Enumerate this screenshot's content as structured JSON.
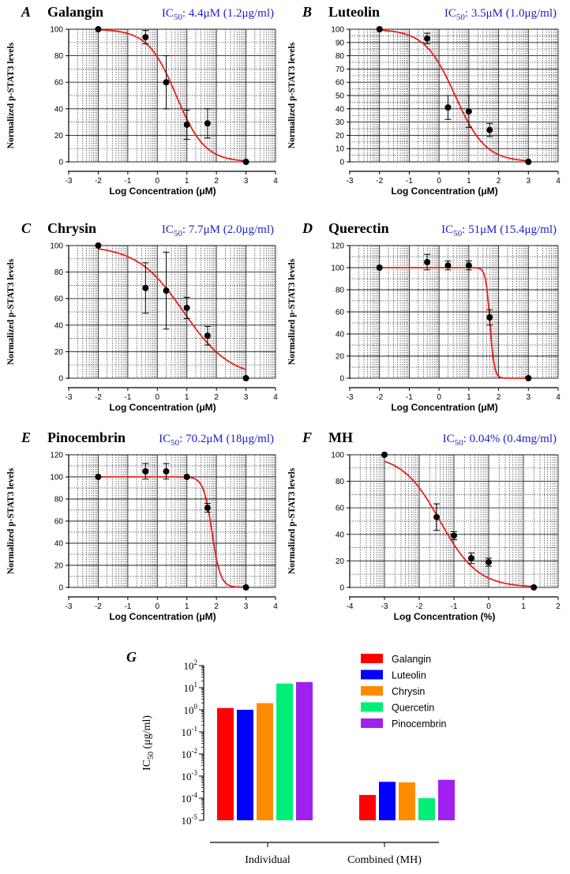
{
  "chart_data": [
    {
      "panel": "A",
      "title": "Galangin",
      "ic50_prefix": "IC",
      "ic50_sub": "50",
      "ic50_value": ": 4.4μM (1.2μg/ml)",
      "type": "scatter",
      "xlabel": "Log Concentration (μM)",
      "ylabel": "Normalized p-STAT3 levels",
      "xlim": [
        -3,
        4
      ],
      "ylim": [
        0,
        100
      ],
      "xticks": [
        "-3",
        "-2",
        "-1",
        "0",
        "1",
        "2",
        "3",
        "4"
      ],
      "yticks": [
        "0",
        "20",
        "40",
        "60",
        "80",
        "100"
      ],
      "points": [
        {
          "x": -2,
          "y": 100,
          "err": 0
        },
        {
          "x": -0.4,
          "y": 94,
          "err": 5
        },
        {
          "x": 0.3,
          "y": 60,
          "err": 20
        },
        {
          "x": 1.0,
          "y": 28,
          "err": 11
        },
        {
          "x": 1.7,
          "y": 29,
          "err": 11
        },
        {
          "x": 3.0,
          "y": 0,
          "err": 0
        }
      ],
      "fit": {
        "top": 100,
        "bottom": 0,
        "logIC50": 0.64,
        "hill": 0.9,
        "xfrom": -2,
        "xto": 3
      }
    },
    {
      "panel": "B",
      "title": "Luteolin",
      "ic50_prefix": "IC",
      "ic50_sub": "50",
      "ic50_value": ": 3.5μM (1.0μg/ml)",
      "type": "scatter",
      "xlabel": "Log Concentration (μM)",
      "ylabel": "Normalized p-STAT3 levels",
      "xlim": [
        -3,
        4
      ],
      "ylim": [
        0,
        100
      ],
      "xticks": [
        "-3",
        "-2",
        "-1",
        "0",
        "1",
        "2",
        "3",
        "4"
      ],
      "yticks": [
        "0",
        "10",
        "20",
        "30",
        "40",
        "50",
        "60",
        "70",
        "80",
        "90",
        "100"
      ],
      "points": [
        {
          "x": -2,
          "y": 100,
          "err": 0
        },
        {
          "x": -0.4,
          "y": 93,
          "err": 4
        },
        {
          "x": 0.3,
          "y": 41,
          "err": 9
        },
        {
          "x": 1.0,
          "y": 38,
          "err": 12
        },
        {
          "x": 1.7,
          "y": 24,
          "err": 5
        },
        {
          "x": 3.0,
          "y": 0,
          "err": 0
        }
      ],
      "fit": {
        "top": 100,
        "bottom": 0,
        "logIC50": 0.54,
        "hill": 0.85,
        "xfrom": -2,
        "xto": 3
      }
    },
    {
      "panel": "C",
      "title": "Chrysin",
      "ic50_prefix": "IC",
      "ic50_sub": "50",
      "ic50_value": ": 7.7μM (2.0μg/ml)",
      "type": "scatter",
      "xlabel": "Log Concentration (μM)",
      "ylabel": "Normalized p-STAT3 levels",
      "xlim": [
        -3,
        4
      ],
      "ylim": [
        0,
        100
      ],
      "xticks": [
        "-3",
        "-2",
        "-1",
        "0",
        "1",
        "2",
        "3",
        "4"
      ],
      "yticks": [
        "0",
        "20",
        "40",
        "60",
        "80",
        "100"
      ],
      "points": [
        {
          "x": -2,
          "y": 100,
          "err": 0
        },
        {
          "x": -0.4,
          "y": 68,
          "err": 19
        },
        {
          "x": 0.3,
          "y": 66,
          "err": 29
        },
        {
          "x": 1.0,
          "y": 53,
          "err": 8
        },
        {
          "x": 1.7,
          "y": 32,
          "err": 7
        },
        {
          "x": 3.0,
          "y": 0,
          "err": 0
        }
      ],
      "fit": {
        "top": 100,
        "bottom": 0,
        "logIC50": 0.89,
        "hill": 0.55,
        "xfrom": -2,
        "xto": 3
      }
    },
    {
      "panel": "D",
      "title": "Querectin",
      "ic50_prefix": "IC",
      "ic50_sub": "50",
      "ic50_value": ": 51μM (15.4μg/ml)",
      "type": "scatter",
      "xlabel": "Log Concentration (μM)",
      "ylabel": "Normalized p-STAT3 levels",
      "xlim": [
        -3,
        4
      ],
      "ylim": [
        0,
        120
      ],
      "xticks": [
        "-3",
        "-2",
        "-1",
        "0",
        "1",
        "2",
        "3",
        "4"
      ],
      "yticks": [
        "0",
        "20",
        "40",
        "60",
        "80",
        "100",
        "120"
      ],
      "points": [
        {
          "x": -2,
          "y": 100,
          "err": 0
        },
        {
          "x": -0.4,
          "y": 105,
          "err": 7
        },
        {
          "x": 0.3,
          "y": 102,
          "err": 4
        },
        {
          "x": 1.0,
          "y": 102,
          "err": 4
        },
        {
          "x": 1.7,
          "y": 55,
          "err": 7
        },
        {
          "x": 3.0,
          "y": 0,
          "err": 0
        }
      ],
      "fit": {
        "top": 100,
        "bottom": 0,
        "logIC50": 1.71,
        "hill": 6,
        "xfrom": -2,
        "xto": 3
      }
    },
    {
      "panel": "E",
      "title": "Pinocembrin",
      "ic50_prefix": "IC",
      "ic50_sub": "50",
      "ic50_value": ": 70.2μM (18μg/ml)",
      "type": "scatter",
      "xlabel": "Log Concentration (μM)",
      "ylabel": "Normalized p-STAT3 levels",
      "xlim": [
        -3,
        4
      ],
      "ylim": [
        0,
        120
      ],
      "xticks": [
        "-3",
        "-2",
        "-1",
        "0",
        "1",
        "2",
        "3",
        "4"
      ],
      "yticks": [
        "0",
        "20",
        "40",
        "60",
        "80",
        "100",
        "120"
      ],
      "points": [
        {
          "x": -2,
          "y": 100,
          "err": 0
        },
        {
          "x": -0.4,
          "y": 105,
          "err": 7
        },
        {
          "x": 0.3,
          "y": 105,
          "err": 7
        },
        {
          "x": 1.0,
          "y": 100,
          "err": 0
        },
        {
          "x": 1.7,
          "y": 72,
          "err": 4
        },
        {
          "x": 3.0,
          "y": 0,
          "err": 0
        }
      ],
      "fit": {
        "top": 100,
        "bottom": 0,
        "logIC50": 1.85,
        "hill": 3,
        "xfrom": -2,
        "xto": 3
      }
    },
    {
      "panel": "F",
      "title": "MH",
      "ic50_prefix": "IC",
      "ic50_sub": "50",
      "ic50_value": ": 0.04% (0.4mg/ml)",
      "type": "scatter",
      "xlabel": "Log Concentration (%)",
      "ylabel": "Normalized p-STAT3 levels",
      "xlim": [
        -4,
        2
      ],
      "ylim": [
        0,
        100
      ],
      "xticks": [
        "-4",
        "-3",
        "-2",
        "-1",
        "0",
        "1",
        "2"
      ],
      "yticks": [
        "0",
        "20",
        "40",
        "60",
        "80",
        "100"
      ],
      "points": [
        {
          "x": -3,
          "y": 100,
          "err": 0
        },
        {
          "x": -1.5,
          "y": 53,
          "err": 10
        },
        {
          "x": -1.0,
          "y": 39,
          "err": 3
        },
        {
          "x": -0.5,
          "y": 22,
          "err": 4
        },
        {
          "x": 0.0,
          "y": 19,
          "err": 3
        },
        {
          "x": 1.3,
          "y": 0,
          "err": 0
        }
      ],
      "fit": {
        "top": 100,
        "bottom": 0,
        "logIC50": -1.4,
        "hill": 0.8,
        "xfrom": -3,
        "xto": 1.3
      }
    },
    {
      "panel": "G",
      "type": "bar",
      "log_scale": true,
      "ylabel_prefix": "IC",
      "ylabel_sub": "50",
      "ylabel_suffix": " (μg/ml)",
      "ylim_exp": [
        -5,
        2
      ],
      "ytick_exps": [
        "-5",
        "-4",
        "-3",
        "-2",
        "-1",
        "0",
        "1",
        "2"
      ],
      "ytick_base": "10",
      "categories": [
        "Individual",
        "Combined (MH)"
      ],
      "series": [
        {
          "name": "Galangin",
          "color": "#ff0000",
          "values": [
            1.2,
            0.00014
          ]
        },
        {
          "name": "Luteolin",
          "color": "#0000ff",
          "values": [
            1.0,
            0.00055
          ]
        },
        {
          "name": "Chrysin",
          "color": "#ff8c00",
          "values": [
            2.0,
            0.00052
          ]
        },
        {
          "name": "Quercetin",
          "color": "#00ee76",
          "values": [
            15.4,
            0.0001
          ]
        },
        {
          "name": "Pinocembrin",
          "color": "#a020f0",
          "values": [
            18,
            0.00068
          ]
        }
      ]
    }
  ]
}
